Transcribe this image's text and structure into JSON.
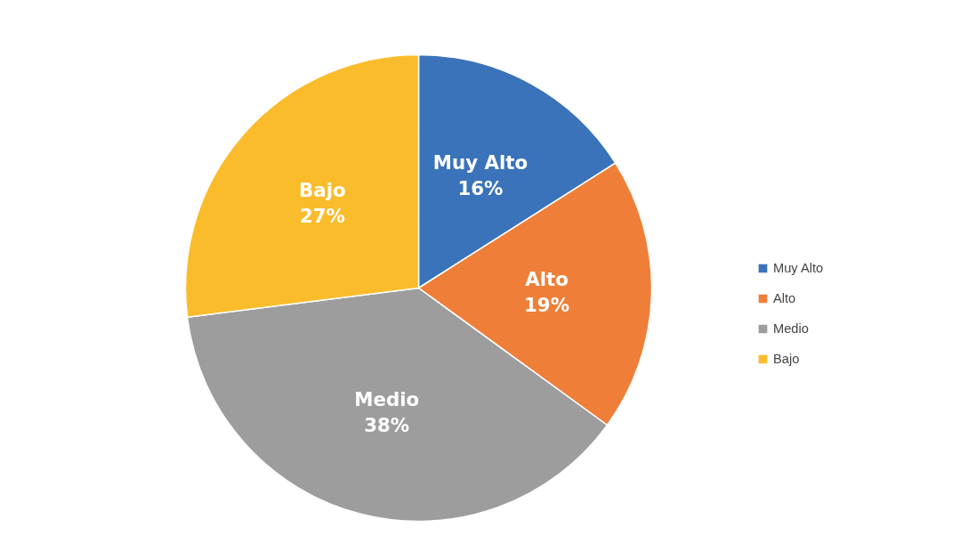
{
  "chart_data": {
    "type": "pie",
    "categories": [
      "Muy Alto",
      "Alto",
      "Medio",
      "Bajo"
    ],
    "values": [
      16,
      19,
      38,
      27
    ],
    "value_labels": [
      "16%",
      "19%",
      "38%",
      "27%"
    ],
    "colors": [
      "#3a73ba",
      "#ef7f38",
      "#9d9d9d",
      "#fbbc2b"
    ],
    "legend": "right"
  }
}
